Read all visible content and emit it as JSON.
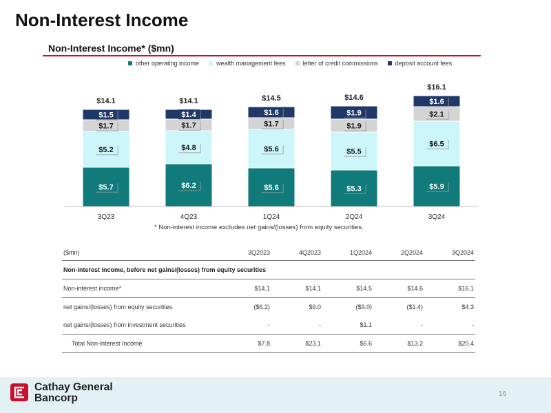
{
  "page": {
    "title": "Non-Interest Income",
    "page_number": "16",
    "company_line1": "Cathay General",
    "company_line2": "Bancorp"
  },
  "colors": {
    "accent": "#c8102e",
    "other_operating_income": "#117a7a",
    "wealth_management_fees": "#ccf6fa",
    "letter_of_credit_commissions": "#d4d4d4",
    "deposit_account_fees": "#1f3868",
    "footer_band": "#e3f0f4"
  },
  "chart_data": {
    "type": "bar",
    "stacked": true,
    "title": "Non-Interest Income* ($mn)",
    "xlabel": "",
    "ylabel": "",
    "ylim": [
      0,
      17
    ],
    "grid": false,
    "legend_position": "top",
    "categories": [
      "3Q23",
      "4Q23",
      "1Q24",
      "2Q24",
      "3Q24"
    ],
    "series": [
      {
        "name": "other operating income",
        "values": [
          5.7,
          6.2,
          5.6,
          5.3,
          5.9
        ],
        "labels": [
          "$5.7",
          "$6.2",
          "$5.6",
          "$5.3",
          "$5.9"
        ]
      },
      {
        "name": "wealth management fees",
        "values": [
          5.2,
          4.8,
          5.6,
          5.5,
          6.5
        ],
        "labels": [
          "$5.2",
          "$4.8",
          "$5.6",
          "$5.5",
          "$6.5"
        ]
      },
      {
        "name": "letter of credit commissions",
        "values": [
          1.7,
          1.7,
          1.7,
          1.9,
          2.1
        ],
        "labels": [
          "$1.7",
          "$1.7",
          "$1.7",
          "$1.9",
          "$2.1"
        ]
      },
      {
        "name": "deposit account fees",
        "values": [
          1.5,
          1.4,
          1.6,
          1.9,
          1.6
        ],
        "labels": [
          "$1.5",
          "$1.4",
          "$1.6",
          "$1.9",
          "$1.6"
        ]
      }
    ],
    "totals": [
      14.1,
      14.1,
      14.5,
      14.6,
      16.1
    ],
    "total_labels": [
      "$14.1",
      "$14.1",
      "$14.5",
      "$14.6",
      "$16.1"
    ],
    "footnote": "*    Non-interest income excludes net gains/(losses) from equity securities."
  },
  "table": {
    "unit_label": "($mn)",
    "columns": [
      "3Q2023",
      "4Q2023",
      "1Q2024",
      "2Q2024",
      "3Q2024"
    ],
    "section_heading": "Non-interest income, before net gains/(losses) from equity securities",
    "rows": [
      {
        "label": "Non-interest income*",
        "values": [
          "$14.1",
          "$14.1",
          "$14.5",
          "$14.6",
          "$16.1"
        ]
      },
      {
        "label": "net gains/(losses) from equity securities",
        "values": [
          "($6.2)",
          "$9.0",
          "($9.0)",
          "($1.4)",
          "$4.3"
        ]
      },
      {
        "label": "net gains/(losses) from investment securities",
        "values": [
          "-",
          "-",
          "$1.1",
          "-",
          "-"
        ]
      },
      {
        "label": "Total Non-interest Income",
        "values": [
          "$7.8",
          "$23.1",
          "$6.6",
          "$13.2",
          "$20.4"
        ]
      }
    ]
  }
}
